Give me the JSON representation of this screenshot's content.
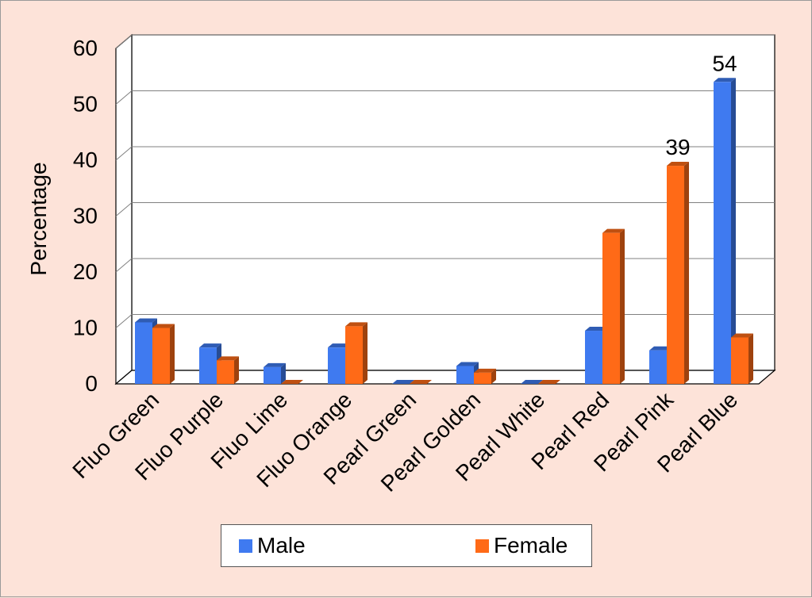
{
  "chart_data": {
    "type": "bar",
    "categories": [
      "Fluo Green",
      "Fluo Purple",
      "Fluo Lime",
      "Fluo Orange",
      "Pearl Green",
      "Pearl Golden",
      "Pearl White",
      "Pearl Red",
      "Pearl Pink",
      "Pearl Blue"
    ],
    "series": [
      {
        "name": "Male",
        "values": [
          11,
          6.5,
          3,
          6.5,
          0,
          3.2,
          0,
          9.5,
          6,
          54
        ],
        "color": "#3f7af0"
      },
      {
        "name": "Female",
        "values": [
          10,
          4.2,
          0,
          10.3,
          0,
          2,
          0,
          27,
          39,
          8.3
        ],
        "color": "#ff6a17"
      }
    ],
    "data_labels": [
      {
        "series": "Female",
        "category": "Pearl Pink",
        "text": "39"
      },
      {
        "series": "Male",
        "category": "Pearl Blue",
        "text": "54"
      }
    ],
    "ylabel": "Percentage",
    "xlabel": "",
    "ylim": [
      0,
      60
    ],
    "yticks": [
      "0",
      "10",
      "20",
      "30",
      "40",
      "50",
      "60"
    ],
    "grid": true,
    "legend_position": "bottom",
    "background_color": "#fde3d9",
    "plot_background": "#ffffff",
    "style": "3d-bars"
  }
}
